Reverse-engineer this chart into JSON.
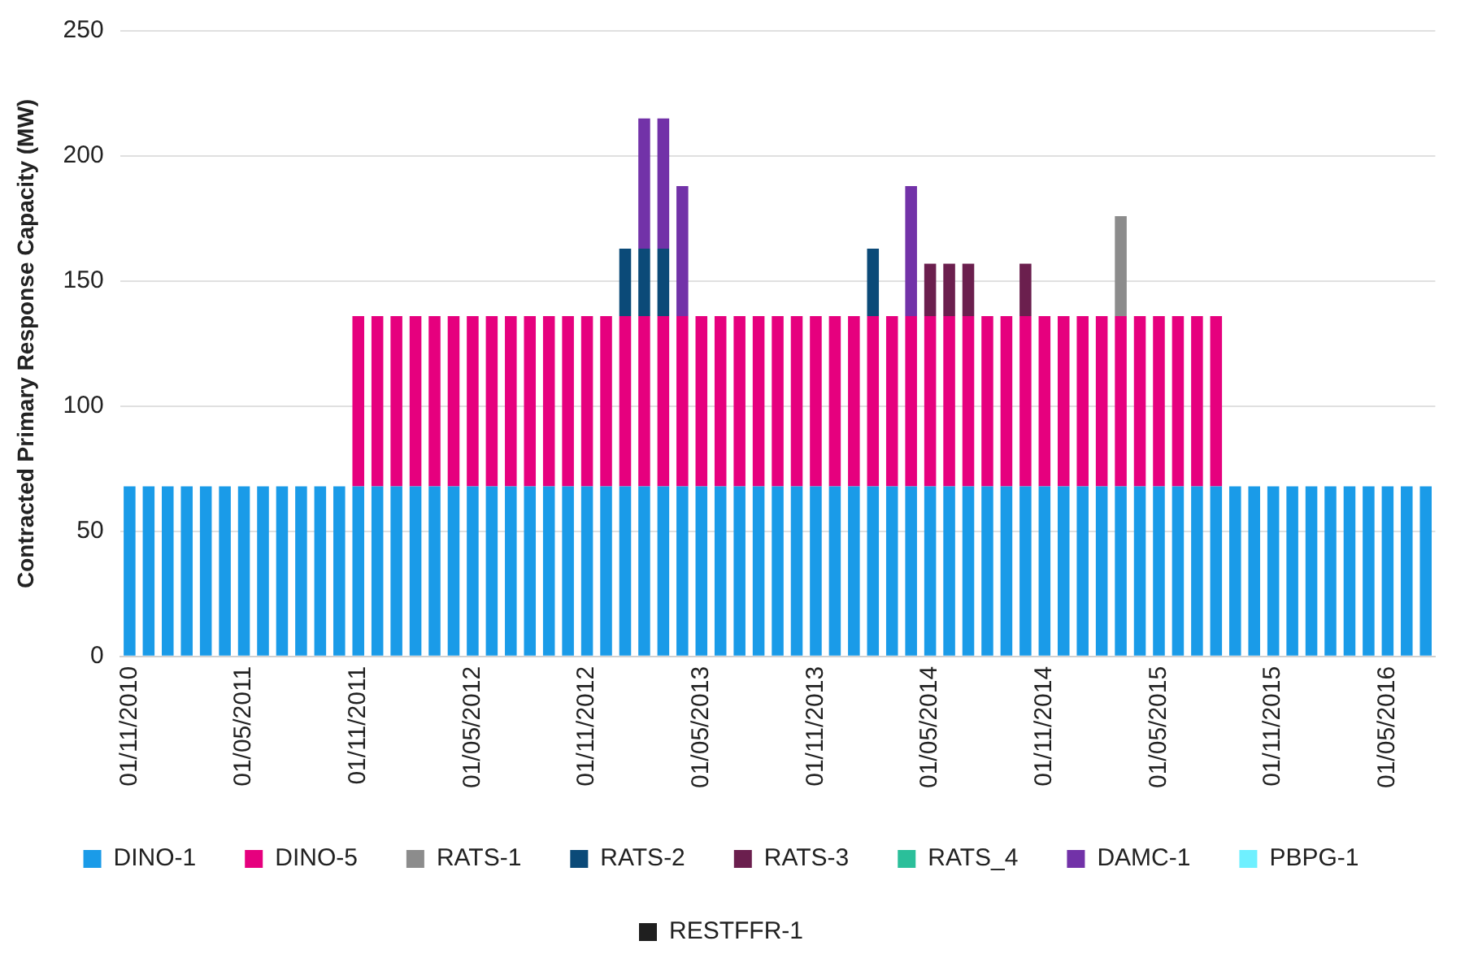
{
  "chart_data": {
    "type": "bar",
    "stacked": true,
    "ylabel": "Contracted Primary Response Capacity (MW)",
    "categories": [
      "01/11/2010",
      null,
      null,
      null,
      null,
      null,
      "01/05/2011",
      null,
      null,
      null,
      null,
      null,
      "01/11/2011",
      null,
      null,
      null,
      null,
      null,
      "01/05/2012",
      null,
      null,
      null,
      null,
      null,
      "01/11/2012",
      null,
      null,
      null,
      null,
      null,
      "01/05/2013",
      null,
      null,
      null,
      null,
      null,
      "01/11/2013",
      null,
      null,
      null,
      null,
      null,
      "01/05/2014",
      null,
      null,
      null,
      null,
      null,
      "01/11/2014",
      null,
      null,
      null,
      null,
      null,
      "01/05/2015",
      null,
      null,
      null,
      null,
      null,
      "01/11/2015",
      null,
      null,
      null,
      null,
      null,
      "01/05/2016",
      null,
      null
    ],
    "ylim": [
      0,
      250
    ],
    "yticks": [
      0,
      50,
      100,
      150,
      200,
      250
    ],
    "grid": "y",
    "legend": "bottom",
    "series": [
      {
        "name": "DINO-1",
        "color": "#1a9be8",
        "values": [
          68,
          68,
          68,
          68,
          68,
          68,
          68,
          68,
          68,
          68,
          68,
          68,
          68,
          68,
          68,
          68,
          68,
          68,
          68,
          68,
          68,
          68,
          68,
          68,
          68,
          68,
          68,
          68,
          68,
          68,
          68,
          68,
          68,
          68,
          68,
          68,
          68,
          68,
          68,
          68,
          68,
          68,
          68,
          68,
          68,
          68,
          68,
          68,
          68,
          68,
          68,
          68,
          68,
          68,
          68,
          68,
          68,
          68,
          68,
          68,
          68,
          68,
          68,
          68,
          68,
          68,
          68,
          68,
          68
        ]
      },
      {
        "name": "DINO-5",
        "color": "#e6007e",
        "values": [
          null,
          null,
          null,
          null,
          null,
          null,
          null,
          null,
          null,
          null,
          null,
          null,
          68,
          68,
          68,
          68,
          68,
          68,
          68,
          68,
          68,
          68,
          68,
          68,
          68,
          68,
          68,
          68,
          68,
          68,
          68,
          68,
          68,
          68,
          68,
          68,
          68,
          68,
          68,
          68,
          68,
          68,
          68,
          68,
          68,
          68,
          68,
          68,
          68,
          68,
          68,
          68,
          68,
          68,
          68,
          68,
          68,
          68,
          null,
          null,
          null,
          null,
          null,
          null,
          null,
          null,
          null,
          null,
          null
        ]
      },
      {
        "name": "RATS-1",
        "color": "#8c8c8c",
        "values": [
          null,
          null,
          null,
          null,
          null,
          null,
          null,
          null,
          null,
          null,
          null,
          null,
          null,
          null,
          null,
          null,
          null,
          null,
          null,
          null,
          null,
          null,
          null,
          null,
          null,
          null,
          null,
          null,
          null,
          null,
          null,
          null,
          null,
          null,
          null,
          null,
          null,
          null,
          null,
          null,
          null,
          null,
          null,
          null,
          null,
          null,
          null,
          null,
          null,
          null,
          null,
          null,
          40,
          null,
          null,
          null,
          null,
          null,
          null,
          null,
          null,
          null,
          null,
          null,
          null,
          null,
          null,
          null,
          null
        ]
      },
      {
        "name": "RATS-2",
        "color": "#0b4a78",
        "values": [
          null,
          null,
          null,
          null,
          null,
          null,
          null,
          null,
          null,
          null,
          null,
          null,
          null,
          null,
          null,
          null,
          null,
          null,
          null,
          null,
          null,
          null,
          null,
          null,
          null,
          null,
          27,
          27,
          27,
          null,
          null,
          null,
          null,
          null,
          null,
          null,
          null,
          null,
          null,
          27,
          null,
          null,
          null,
          null,
          null,
          null,
          null,
          null,
          null,
          null,
          null,
          null,
          null,
          null,
          null,
          null,
          null,
          null,
          null,
          null,
          null,
          null,
          null,
          null,
          null,
          null,
          null,
          null,
          null
        ]
      },
      {
        "name": "RATS-3",
        "color": "#6b1f4e",
        "values": [
          null,
          null,
          null,
          null,
          null,
          null,
          null,
          null,
          null,
          null,
          null,
          null,
          null,
          null,
          null,
          null,
          null,
          null,
          null,
          null,
          null,
          null,
          null,
          null,
          null,
          null,
          null,
          null,
          null,
          null,
          null,
          null,
          null,
          null,
          null,
          null,
          null,
          null,
          null,
          null,
          null,
          null,
          21,
          21,
          21,
          null,
          null,
          21,
          null,
          null,
          null,
          null,
          null,
          null,
          null,
          null,
          null,
          null,
          null,
          null,
          null,
          null,
          null,
          null,
          null,
          null,
          null,
          null,
          null
        ]
      },
      {
        "name": "RATS_4",
        "color": "#2bbf9a",
        "values": [
          null,
          null,
          null,
          null,
          null,
          null,
          null,
          null,
          null,
          null,
          null,
          null,
          null,
          null,
          null,
          null,
          null,
          null,
          null,
          null,
          null,
          null,
          null,
          null,
          null,
          null,
          null,
          null,
          null,
          null,
          null,
          null,
          null,
          null,
          null,
          null,
          null,
          null,
          null,
          null,
          null,
          null,
          null,
          null,
          null,
          null,
          null,
          null,
          null,
          null,
          null,
          null,
          null,
          null,
          null,
          null,
          null,
          null,
          null,
          null,
          null,
          null,
          null,
          null,
          null,
          null,
          null,
          null,
          null
        ]
      },
      {
        "name": "DAMC-1",
        "color": "#7232a8",
        "values": [
          null,
          null,
          null,
          null,
          null,
          null,
          null,
          null,
          null,
          null,
          null,
          null,
          null,
          null,
          null,
          null,
          null,
          null,
          null,
          null,
          null,
          null,
          null,
          null,
          null,
          null,
          null,
          52,
          52,
          52,
          null,
          null,
          null,
          null,
          null,
          null,
          null,
          null,
          null,
          null,
          null,
          52,
          null,
          null,
          null,
          null,
          null,
          null,
          null,
          null,
          null,
          null,
          null,
          null,
          null,
          null,
          null,
          null,
          null,
          null,
          null,
          null,
          null,
          null,
          null,
          null,
          null,
          null,
          null
        ]
      },
      {
        "name": "PBPG-1",
        "color": "#6ff0ff",
        "values": [
          null,
          null,
          null,
          null,
          null,
          null,
          null,
          null,
          null,
          null,
          null,
          null,
          null,
          null,
          null,
          null,
          null,
          null,
          null,
          null,
          null,
          null,
          null,
          null,
          null,
          null,
          null,
          null,
          null,
          null,
          null,
          null,
          null,
          null,
          null,
          null,
          null,
          null,
          null,
          null,
          null,
          null,
          null,
          null,
          null,
          null,
          null,
          null,
          null,
          null,
          null,
          null,
          null,
          null,
          null,
          null,
          null,
          null,
          null,
          null,
          null,
          null,
          null,
          null,
          null,
          null,
          null,
          null,
          null
        ]
      },
      {
        "name": "RESTFFR-1",
        "color": "#1f1f1f",
        "values": [
          null,
          null,
          null,
          null,
          null,
          null,
          null,
          null,
          null,
          null,
          null,
          null,
          null,
          null,
          null,
          null,
          null,
          null,
          null,
          null,
          null,
          null,
          null,
          null,
          null,
          null,
          null,
          null,
          null,
          null,
          null,
          null,
          null,
          null,
          null,
          null,
          null,
          null,
          null,
          null,
          null,
          null,
          null,
          null,
          null,
          null,
          null,
          null,
          null,
          null,
          null,
          null,
          null,
          null,
          null,
          null,
          null,
          null,
          null,
          null,
          null,
          null,
          null,
          null,
          null,
          null,
          null,
          null,
          null
        ]
      }
    ]
  }
}
